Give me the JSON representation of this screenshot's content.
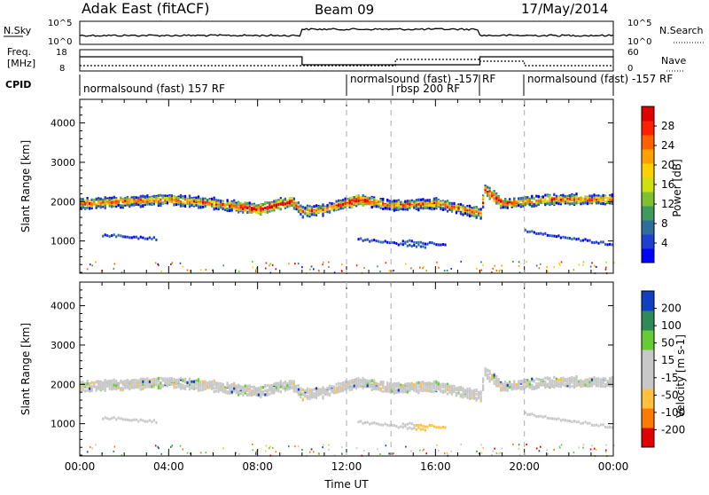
{
  "header": {
    "title": "Adak East (fitACF)",
    "beam": "Beam 09",
    "date": "17/May/2014"
  },
  "chart_data": [
    {
      "type": "line",
      "name": "noise-panel",
      "left_label": "N.Sky",
      "right_label": "N.Search",
      "left_ticks": [
        "10^5",
        "10^0"
      ],
      "right_ticks": [
        "10^5",
        "10^0"
      ]
    },
    {
      "type": "line",
      "name": "frequency-panel",
      "left_label_lines": [
        "Freq.",
        "[MHz]"
      ],
      "right_label": "Nave",
      "left_ticks": [
        "18",
        "8"
      ],
      "right_ticks": [
        "60",
        "0"
      ],
      "x_hours": [
        0,
        10,
        10,
        18,
        18,
        24
      ],
      "freq_steps": [
        {
          "from": 0,
          "to": 10,
          "level": "high"
        },
        {
          "from": 10,
          "to": 18,
          "level": "low"
        },
        {
          "from": 18,
          "to": 24,
          "level": "high"
        }
      ]
    },
    {
      "type": "table",
      "name": "cpid-panel",
      "label": "CPID",
      "segments": [
        {
          "start": 0,
          "end": 12,
          "text": "normalsound (fast) 157 RF"
        },
        {
          "start": 12,
          "end": 18,
          "text": "normalsound (fast) -157 RF"
        },
        {
          "start": 14,
          "end": 18,
          "text": "rbsp 200 RF"
        },
        {
          "start": 20,
          "end": 24,
          "text": "normalsound (fast) -157 RF"
        }
      ]
    },
    {
      "type": "heatmap",
      "name": "power-panel",
      "ylabel": "Slant Range [km]",
      "yticks": [
        1000,
        2000,
        3000,
        4000
      ],
      "ylim": [
        180,
        4600
      ],
      "xlim": [
        0,
        24
      ],
      "colorbar": {
        "label": "Power [dB]",
        "ticks": [
          4,
          8,
          12,
          16,
          20,
          24,
          28
        ],
        "range": [
          0,
          31
        ]
      },
      "main_band": [
        {
          "t": 0,
          "r": 1950
        },
        {
          "t": 2,
          "r": 2000
        },
        {
          "t": 4,
          "r": 2050
        },
        {
          "t": 6,
          "r": 1950
        },
        {
          "t": 8,
          "r": 1800
        },
        {
          "t": 9.5,
          "r": 2000
        },
        {
          "t": 10,
          "r": 1750
        },
        {
          "t": 11,
          "r": 1800
        },
        {
          "t": 12.5,
          "r": 2050
        },
        {
          "t": 13.5,
          "r": 1950
        },
        {
          "t": 14,
          "r": 1900
        },
        {
          "t": 16,
          "r": 1950
        },
        {
          "t": 18,
          "r": 1700
        },
        {
          "t": 18.2,
          "r": 2300
        },
        {
          "t": 19,
          "r": 1950
        },
        {
          "t": 21,
          "r": 2050
        },
        {
          "t": 24,
          "r": 2050
        }
      ]
    },
    {
      "type": "heatmap",
      "name": "velocity-panel",
      "ylabel": "Slant Range [km]",
      "yticks": [
        1000,
        2000,
        3000,
        4000
      ],
      "ylim": [
        180,
        4600
      ],
      "xlim": [
        0,
        24
      ],
      "xlabel": "Time UT",
      "xticks": [
        "00:00",
        "04:00",
        "08:00",
        "12:00",
        "16:00",
        "20:00",
        "00:00"
      ],
      "colorbar": {
        "label": "Velocity [m s-1]",
        "ticks": [
          200,
          100,
          50,
          15,
          -15,
          -50,
          -100,
          -200
        ]
      }
    }
  ],
  "colors": {
    "power_scale": [
      "#0000ff",
      "#1f3fd0",
      "#2e6e9e",
      "#3f9a5c",
      "#7fc030",
      "#cfe010",
      "#ffd000",
      "#ffa000",
      "#ff6000",
      "#ff2000",
      "#e00000"
    ],
    "velocity_scale": [
      "#e00000",
      "#ff7a00",
      "#ffc040",
      "#c8c8c8",
      "#c8c8c8",
      "#66cc33",
      "#2e8b57",
      "#1040c0"
    ],
    "dashed_line": "#aaaaaa"
  }
}
